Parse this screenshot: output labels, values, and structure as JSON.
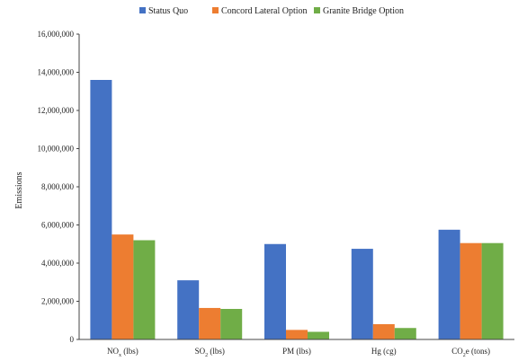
{
  "chart_data": {
    "type": "bar",
    "title": "",
    "xlabel": "",
    "ylabel": "Emissions",
    "ylim": [
      0,
      16000000
    ],
    "yticks": [
      0,
      2000000,
      4000000,
      6000000,
      8000000,
      10000000,
      12000000,
      14000000,
      16000000
    ],
    "ytick_labels": [
      "0",
      "2,000,000",
      "4,000,000",
      "6,000,000",
      "8,000,000",
      "10,000,000",
      "12,000,000",
      "14,000,000",
      "16,000,000"
    ],
    "categories": [
      {
        "main": "NO",
        "sub": "x",
        "rest": " (lbs)"
      },
      {
        "main": "SO",
        "sub": "2",
        "rest": " (lbs)"
      },
      {
        "main": "PM (lbs)",
        "sub": "",
        "rest": ""
      },
      {
        "main": "Hg (cg)",
        "sub": "",
        "rest": ""
      },
      {
        "main": "CO",
        "sub": "2",
        "rest": "e (tons)"
      }
    ],
    "series": [
      {
        "name": "Status Quo",
        "color": "#4472C4",
        "values": [
          13600000,
          3100000,
          5000000,
          4750000,
          5750000
        ]
      },
      {
        "name": "Concord Lateral Option",
        "color": "#ED7D31",
        "values": [
          5500000,
          1650000,
          500000,
          800000,
          5050000
        ]
      },
      {
        "name": "Granite Bridge Option",
        "color": "#70AD47",
        "values": [
          5200000,
          1600000,
          400000,
          600000,
          5050000
        ]
      }
    ],
    "legend_position": "top",
    "grid": false
  }
}
